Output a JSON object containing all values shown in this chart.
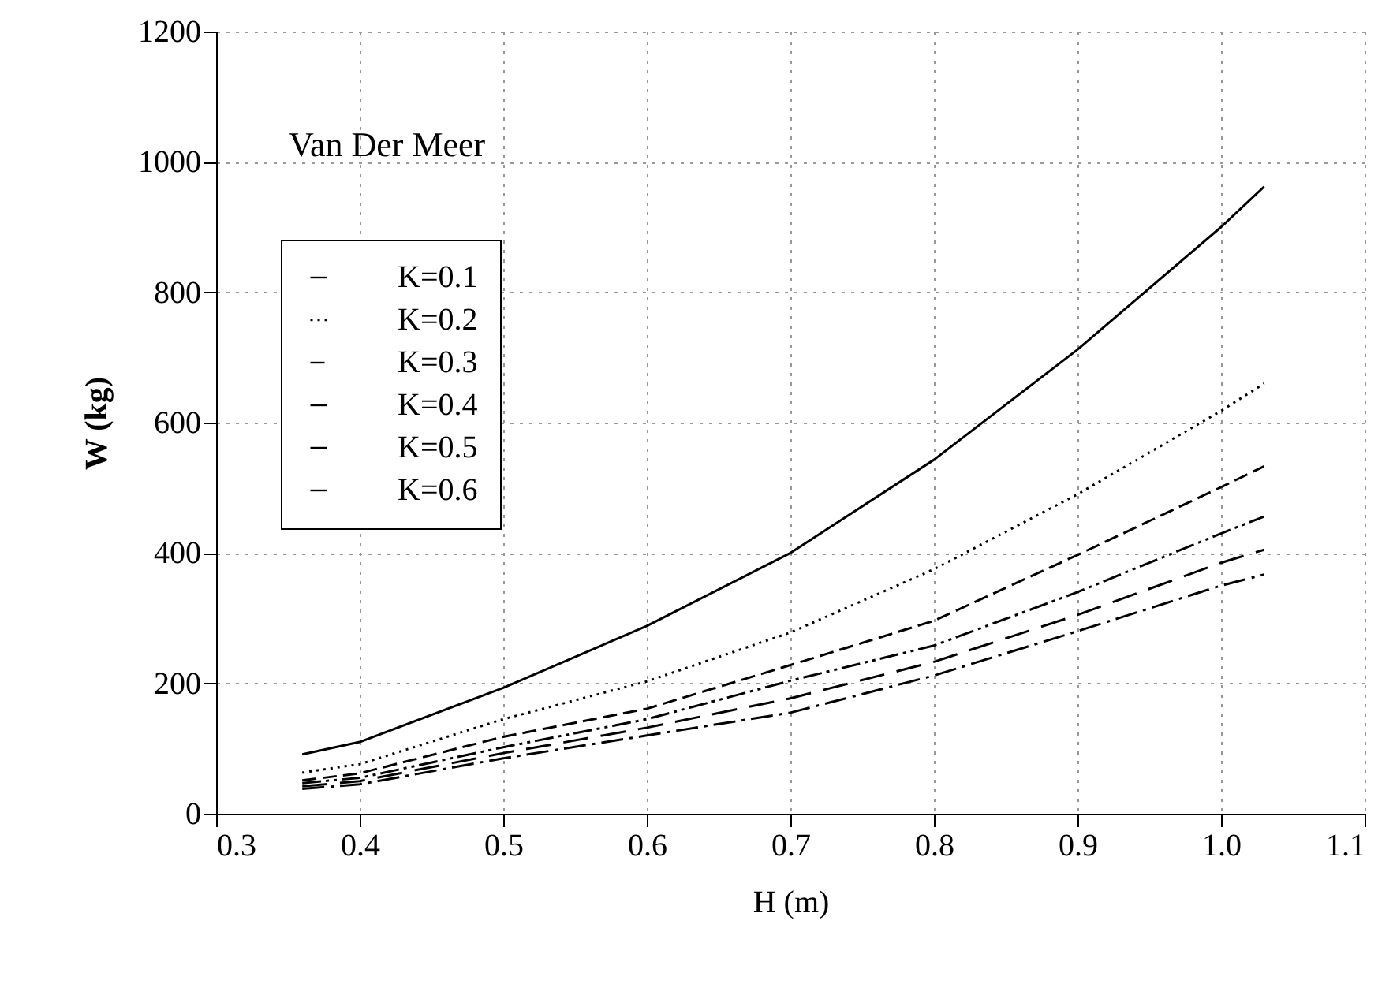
{
  "chart_data": {
    "type": "line",
    "xlabel": "H (m)",
    "ylabel": "W (kg)",
    "annotations": [
      "Van Der Meer"
    ],
    "x": [
      0.36,
      0.4,
      0.5,
      0.6,
      0.7,
      0.8,
      0.9,
      1.0,
      1.03
    ],
    "series": [
      {
        "name": "K=0.1",
        "color": "#000000",
        "line_style": "solid",
        "values": [
          91,
          110,
          193,
          288,
          400,
          543,
          712,
          900,
          962
        ]
      },
      {
        "name": "K=0.2",
        "color": "#000000",
        "line_style": "dotted",
        "values": [
          63,
          76,
          145,
          203,
          278,
          375,
          490,
          618,
          660
        ]
      },
      {
        "name": "K=0.3",
        "color": "#000000",
        "line_style": "dashed",
        "values": [
          51,
          62,
          118,
          161,
          228,
          296,
          397,
          501,
          533
        ]
      },
      {
        "name": "K=0.4",
        "color": "#000000",
        "line_style": "dashdotdot",
        "values": [
          47,
          55,
          102,
          145,
          204,
          258,
          340,
          430,
          456
        ]
      },
      {
        "name": "K=0.5",
        "color": "#000000",
        "line_style": "longdash",
        "values": [
          42,
          50,
          93,
          132,
          177,
          233,
          305,
          385,
          405
        ]
      },
      {
        "name": "K=0.6",
        "color": "#000000",
        "line_style": "dashdot",
        "values": [
          38,
          45,
          85,
          120,
          155,
          212,
          280,
          350,
          367
        ]
      }
    ],
    "xlim": [
      0.3,
      1.1
    ],
    "xticks": [
      0.3,
      0.4,
      0.5,
      0.6,
      0.7,
      0.8,
      0.9,
      {
        "value": 1.0,
        "label": "1.0"
      },
      1.1
    ],
    "ylim": [
      0,
      1200
    ],
    "yticks": [
      0,
      200,
      400,
      600,
      800,
      {
        "value": 1000,
        "label": "1000"
      },
      {
        "value": 1200,
        "label": "1200"
      }
    ],
    "grid": true,
    "legend": "top left"
  }
}
